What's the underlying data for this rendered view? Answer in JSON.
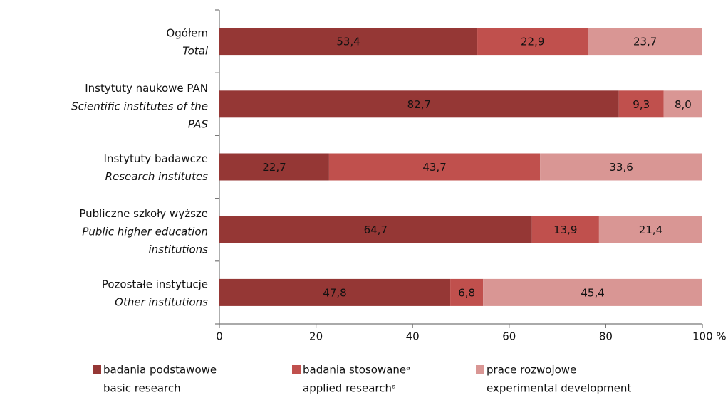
{
  "chart_data": {
    "type": "stacked_barh",
    "categories": [
      "Ogółem",
      "Instytuty naukowe PAN",
      "Instytuty badawcze",
      "Publiczne szkoły wyższe",
      "Pozostałe instytucje"
    ],
    "categories_en": [
      "Total",
      "Scientific institutes of the PAS",
      "Research institutes",
      "Public higher education institutions",
      "Other institutions"
    ],
    "series": [
      {
        "name": "badania podstawowe",
        "name_en": "basic research",
        "color": "#953735",
        "values": [
          53.4,
          82.7,
          22.7,
          64.7,
          47.8
        ],
        "value_labels": [
          "53,4",
          "82,7",
          "22,7",
          "64,7",
          "47,8"
        ]
      },
      {
        "name": "badania stosowaneᵃ",
        "name_en": "applied researchᵃ",
        "color": "#c0504d",
        "values": [
          22.9,
          9.3,
          43.7,
          13.9,
          6.8
        ],
        "value_labels": [
          "22,9",
          "9,3",
          "43,7",
          "13,9",
          "6,8"
        ]
      },
      {
        "name": "prace rozwojowe",
        "name_en": "experimental development",
        "color": "#d99694",
        "values": [
          23.7,
          8.0,
          33.6,
          21.4,
          45.4
        ],
        "value_labels": [
          "23,7",
          "8,0",
          "33,6",
          "21,4",
          "45,4"
        ]
      }
    ],
    "xlim": [
      0,
      100
    ],
    "xticks": [
      0,
      20,
      40,
      60,
      80,
      {
        "value": 100,
        "label": "100 %"
      }
    ]
  }
}
